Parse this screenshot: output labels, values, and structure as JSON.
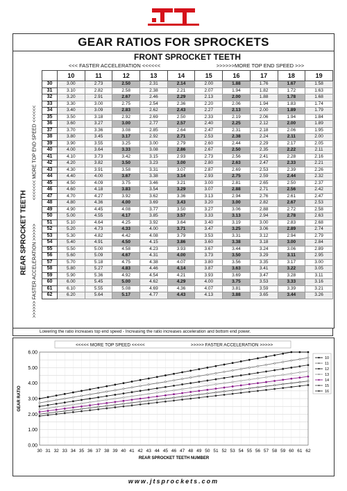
{
  "page": {
    "title": "GEAR RATIOS FOR SPROCKETS",
    "front_title": "FRONT SPROCKET TEETH",
    "speed_left": "<<< FASTER  ACCELERATION <<<<<<",
    "speed_right": ">>>>>>MORE TOP END SPEED >>>",
    "rear_label": "REAR SPROCKET TEETH",
    "side_top": "<<<<<<< MORE TOP END SPEED <<<<<<",
    "side_bottom": ">>>>>> FASTER  ACCELERATION >>>>>>",
    "footnote": "Lowering the ratio increases top end speed - Increasing the ratio increases acceleration and bottom end power.",
    "chart_banner_left": "<<<<<  MORE TOP SPEED  <<<<<",
    "chart_banner_right": ">>>>>  FASTER ACCELERATION  >>>>>",
    "url": "www.jtsprockets.com"
  },
  "colors": {
    "logo_red": "#d5121b",
    "grid_border": "#444444",
    "highlight": "#b8b8b8"
  },
  "table": {
    "front": [
      10,
      11,
      12,
      13,
      14,
      15,
      16,
      17,
      18,
      19
    ],
    "rear": [
      30,
      31,
      32,
      33,
      34,
      35,
      36,
      37,
      38,
      39,
      40,
      41,
      42,
      43,
      44,
      45,
      46,
      47,
      48,
      49,
      50,
      51,
      52,
      53,
      54,
      55,
      56,
      57,
      58,
      59,
      60,
      61,
      62
    ],
    "rows": [
      [
        "3.00",
        "2.73",
        "2.50",
        "2.31",
        "2.14",
        "2.00",
        "1.88",
        "1.76",
        "1.67",
        "1.58"
      ],
      [
        "3.10",
        "2.82",
        "2.58",
        "2.38",
        "2.21",
        "2.07",
        "1.94",
        "1.82",
        "1.72",
        "1.63"
      ],
      [
        "3.20",
        "2.91",
        "2.67",
        "2.46",
        "2.29",
        "2.13",
        "2.00",
        "1.88",
        "1.78",
        "1.68"
      ],
      [
        "3.30",
        "3.00",
        "2.75",
        "2.54",
        "2.36",
        "2.20",
        "2.06",
        "1.94",
        "1.83",
        "1.74"
      ],
      [
        "3.40",
        "3.09",
        "2.83",
        "2.62",
        "2.43",
        "2.27",
        "2.13",
        "2.00",
        "1.89",
        "1.79"
      ],
      [
        "3.50",
        "3.18",
        "2.92",
        "2.69",
        "2.50",
        "2.33",
        "2.19",
        "2.06",
        "1.94",
        "1.84"
      ],
      [
        "3.60",
        "3.27",
        "3.00",
        "2.77",
        "2.57",
        "2.40",
        "2.25",
        "2.12",
        "2.00",
        "1.89"
      ],
      [
        "3.70",
        "3.36",
        "3.08",
        "2.85",
        "2.64",
        "2.47",
        "2.31",
        "2.18",
        "2.06",
        "1.95"
      ],
      [
        "3.80",
        "3.45",
        "3.17",
        "2.92",
        "2.71",
        "2.53",
        "2.38",
        "2.24",
        "2.11",
        "2.00"
      ],
      [
        "3.90",
        "3.55",
        "3.25",
        "3.00",
        "2.79",
        "2.60",
        "2.44",
        "2.29",
        "2.17",
        "2.05"
      ],
      [
        "4.00",
        "3.64",
        "3.33",
        "3.08",
        "2.86",
        "2.67",
        "2.50",
        "2.35",
        "2.22",
        "2.11"
      ],
      [
        "4.10",
        "3.73",
        "3.42",
        "3.15",
        "2.93",
        "2.73",
        "2.56",
        "2.41",
        "2.28",
        "2.16"
      ],
      [
        "4.20",
        "3.82",
        "3.50",
        "3.23",
        "3.00",
        "2.80",
        "2.63",
        "2.47",
        "2.33",
        "2.21"
      ],
      [
        "4.30",
        "3.91",
        "3.58",
        "3.31",
        "3.07",
        "2.87",
        "2.69",
        "2.53",
        "2.39",
        "2.26"
      ],
      [
        "4.40",
        "4.00",
        "3.67",
        "3.38",
        "3.14",
        "2.93",
        "2.75",
        "2.59",
        "2.44",
        "2.32"
      ],
      [
        "4.50",
        "4.09",
        "3.75",
        "3.46",
        "3.21",
        "3.00",
        "2.81",
        "2.65",
        "2.50",
        "2.37"
      ],
      [
        "4.60",
        "4.18",
        "3.83",
        "3.54",
        "3.29",
        "3.07",
        "2.88",
        "2.71",
        "2.56",
        "2.42"
      ],
      [
        "4.70",
        "4.27",
        "3.92",
        "3.62",
        "3.36",
        "3.13",
        "2.94",
        "2.76",
        "2.61",
        "2.47"
      ],
      [
        "4.80",
        "4.36",
        "4.00",
        "3.69",
        "3.43",
        "3.20",
        "3.00",
        "2.82",
        "2.67",
        "2.53"
      ],
      [
        "4.90",
        "4.45",
        "4.08",
        "3.77",
        "3.50",
        "3.27",
        "3.06",
        "2.88",
        "2.72",
        "2.58"
      ],
      [
        "5.00",
        "4.55",
        "4.17",
        "3.85",
        "3.57",
        "3.33",
        "3.13",
        "2.94",
        "2.78",
        "2.63"
      ],
      [
        "5.10",
        "4.64",
        "4.25",
        "3.92",
        "3.64",
        "3.40",
        "3.19",
        "3.00",
        "2.83",
        "2.68"
      ],
      [
        "5.20",
        "4.73",
        "4.33",
        "4.00",
        "3.71",
        "3.47",
        "3.25",
        "3.06",
        "2.89",
        "2.74"
      ],
      [
        "5.30",
        "4.82",
        "4.42",
        "4.08",
        "3.79",
        "3.53",
        "3.31",
        "3.12",
        "2.94",
        "2.79"
      ],
      [
        "5.40",
        "4.91",
        "4.50",
        "4.15",
        "3.86",
        "3.60",
        "3.38",
        "3.18",
        "3.00",
        "2.84"
      ],
      [
        "5.50",
        "5.00",
        "4.58",
        "4.23",
        "3.93",
        "3.67",
        "3.44",
        "3.24",
        "3.06",
        "2.89"
      ],
      [
        "5.60",
        "5.09",
        "4.67",
        "4.31",
        "4.00",
        "3.73",
        "3.50",
        "3.29",
        "3.11",
        "2.95"
      ],
      [
        "5.70",
        "5.18",
        "4.75",
        "4.38",
        "4.07",
        "3.80",
        "3.56",
        "3.35",
        "3.17",
        "3.00"
      ],
      [
        "5.80",
        "5.27",
        "4.83",
        "4.46",
        "4.14",
        "3.87",
        "3.63",
        "3.41",
        "3.22",
        "3.05"
      ],
      [
        "5.90",
        "5.36",
        "4.92",
        "4.54",
        "4.21",
        "3.93",
        "3.69",
        "3.47",
        "3.28",
        "3.11"
      ],
      [
        "6.00",
        "5.45",
        "5.00",
        "4.62",
        "4.29",
        "4.00",
        "3.75",
        "3.53",
        "3.33",
        "3.16"
      ],
      [
        "6.10",
        "5.55",
        "5.08",
        "4.69",
        "4.36",
        "4.07",
        "3.81",
        "3.59",
        "3.39",
        "3.21"
      ],
      [
        "6.20",
        "5.64",
        "5.17",
        "4.77",
        "4.43",
        "4.13",
        "3.88",
        "3.65",
        "3.44",
        "3.26"
      ]
    ]
  },
  "chart_data": {
    "type": "line",
    "xlabel": "REAR SPROCKET TEETH NUMBER",
    "ylabel": "GEAR RATIO",
    "ylim": [
      0,
      6
    ],
    "yticks": [
      "0.00",
      "1.00",
      "2.00",
      "3.00",
      "4.00",
      "5.00",
      "6.00"
    ],
    "x": [
      30,
      31,
      32,
      33,
      34,
      35,
      36,
      37,
      38,
      39,
      40,
      41,
      42,
      43,
      44,
      45,
      46,
      47,
      48,
      49,
      50,
      51,
      52,
      53,
      54,
      55,
      56,
      57,
      58,
      59,
      60,
      61,
      62
    ],
    "grid": true,
    "legend_position": "right",
    "series": [
      {
        "name": "10",
        "front": 10,
        "color": "#111111"
      },
      {
        "name": "11",
        "front": 11,
        "color": "#777777"
      },
      {
        "name": "12",
        "front": 12,
        "color": "#222222"
      },
      {
        "name": "13",
        "front": 13,
        "color": "#999999"
      },
      {
        "name": "14",
        "front": 14,
        "color": "#8a1a8a"
      },
      {
        "name": "15",
        "front": 15,
        "color": "#555555"
      },
      {
        "name": "16",
        "front": 16,
        "color": "#333333"
      }
    ]
  }
}
